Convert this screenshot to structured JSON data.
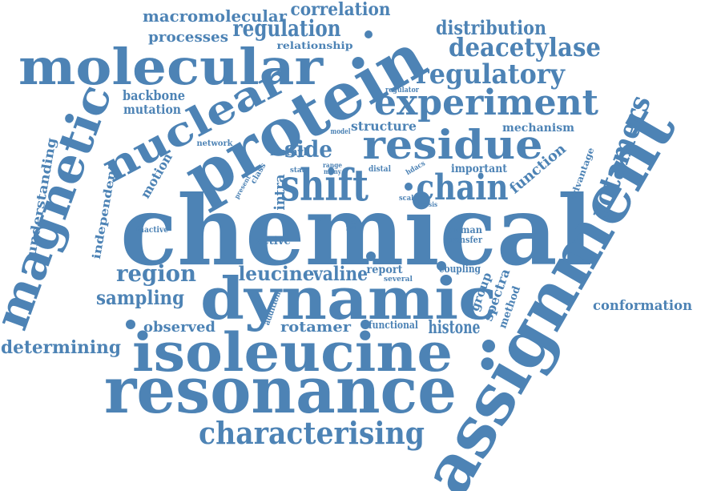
{
  "color": "#4d83b5",
  "words": {
    "chemical": "chemical",
    "assignment": "assignment",
    "protein": "protein",
    "resonance": "resonance",
    "isoleucine": "isoleucine",
    "dynamic": "dynamic",
    "molecular": "molecular",
    "nuclear": "nuclear",
    "magnetic": "magnetic",
    "residue": "residue",
    "experiment": "experiment",
    "shift": "shift",
    "chain": "chain",
    "characterising": "characterising",
    "rotamers": "rotamers",
    "regulatory": "regulatory",
    "deacetylase": "deacetylase",
    "regulation": "regulation",
    "distribution": "distribution",
    "correlation": "correlation",
    "macromolecular": "macromolecular",
    "processes": "processes",
    "relationship": "relationship",
    "backbone": "backbone",
    "mutation": "mutation",
    "region": "region",
    "leucine": "leucine",
    "valine": "valine",
    "sampling": "sampling",
    "side": "side",
    "determining": "determining",
    "observed": "observed",
    "rotamer": "rotamer",
    "histone": "histone",
    "conformation": "conformation",
    "function": "function",
    "structure": "structure",
    "mechanism": "mechanism",
    "understanding": "understanding",
    "independent": "independent",
    "motion": "motion",
    "methyl": "methyl",
    "intra": "intra",
    "important": "important",
    "group": "group",
    "spectra": "spectra",
    "method": "method",
    "advantage": "advantage",
    "human": "human",
    "transfer": "transfer",
    "active": "active",
    "inactive": "inactive",
    "report": "report",
    "several": "several",
    "coupling": "coupling",
    "addition": "addition",
    "functional": "functional",
    "network": "network",
    "model": "model",
    "regulator": "regulator",
    "class": "class",
    "state": "state",
    "range": "range",
    "many": "many",
    "distal": "distal",
    "hdacs": "hdacs",
    "present": "present",
    "scalar": "scalar",
    "thesis": "thesis",
    "time": "time",
    "site": "site",
    "part": "part"
  }
}
